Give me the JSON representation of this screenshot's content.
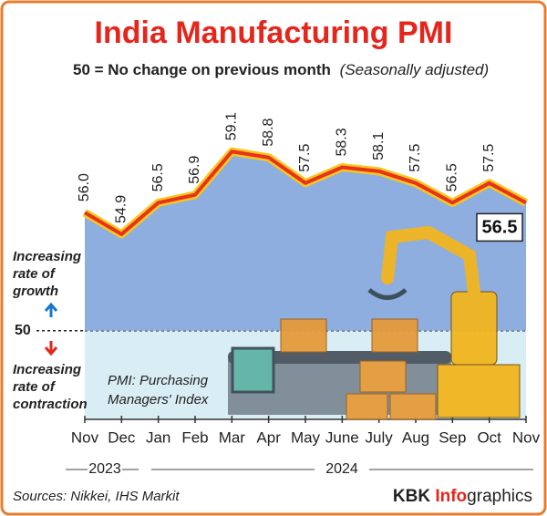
{
  "chart_data": {
    "type": "line",
    "title": "India Manufacturing PMI",
    "subtitle": "50 = No change on previous month",
    "subtitle_note": "(Seasonally adjusted)",
    "categories": [
      "Nov",
      "Dec",
      "Jan",
      "Feb",
      "Mar",
      "Apr",
      "May",
      "June",
      "July",
      "Aug",
      "Sep",
      "Oct",
      "Nov"
    ],
    "years": [
      "2023",
      "2024"
    ],
    "values": [
      56.0,
      54.9,
      56.5,
      56.9,
      59.1,
      58.8,
      57.5,
      58.3,
      58.1,
      57.5,
      56.5,
      57.5,
      56.5
    ],
    "value_labels": [
      "56.0",
      "54.9",
      "56.5",
      "56.9",
      "59.1",
      "58.8",
      "57.5",
      "58.3",
      "58.1",
      "57.5",
      "56.5",
      "57.5",
      "56.5"
    ],
    "color": "#e8321e",
    "ylim": [
      45.5,
      62
    ],
    "yticks": [
      50
    ],
    "grid": true,
    "growth_note": [
      "Increasing",
      "rate of",
      "growth"
    ],
    "contraction_note": [
      "Increasing",
      "rate of",
      "contraction"
    ],
    "definition": [
      "PMI: Purchasing",
      "Managers' Index"
    ],
    "source": "Sources: Nikkei, IHS Markit",
    "credit": [
      "KBK ",
      "Info",
      "graphics"
    ]
  }
}
